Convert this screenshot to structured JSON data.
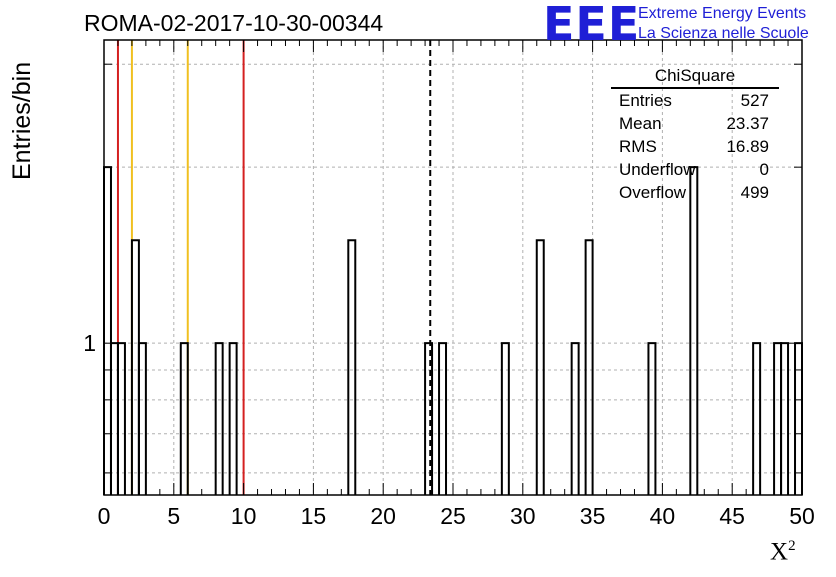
{
  "header": {
    "run_title": "ROMA-02-2017-10-30-00344"
  },
  "logo": {
    "mark": "EEE",
    "line1": "Extreme Energy Events",
    "line2": "La Scienza nelle Scuole"
  },
  "stats_box": {
    "title": "ChiSquare",
    "rows": [
      {
        "name": "Entries",
        "value": "527"
      },
      {
        "name": "Mean",
        "value": "23.37"
      },
      {
        "name": "RMS",
        "value": "16.89"
      },
      {
        "name": "Underflow",
        "value": "0"
      },
      {
        "name": "Overflow",
        "value": "499"
      }
    ]
  },
  "colors": {
    "histogram": "#000000",
    "red_lines": "#d42020",
    "yellow_lines": "#f0c020",
    "mean_line": "#000000",
    "grid": "#b0b0b0",
    "logo": "#1f1fd6"
  },
  "chart_data": {
    "type": "histogram",
    "title": "ROMA-02-2017-10-30-00344",
    "xlabel": "X",
    "xlabel_superscript": "2",
    "ylabel": "Entries/bin",
    "x_range": [
      0,
      50
    ],
    "x_ticks": [
      0,
      5,
      10,
      15,
      20,
      25,
      30,
      35,
      40,
      45,
      50
    ],
    "y_scale": "log",
    "y_range": [
      0.55,
      3.3
    ],
    "y_tick_labels": [
      {
        "value": 1,
        "label": "1"
      }
    ],
    "grid": true,
    "bin_width": 0.5,
    "bins": [
      {
        "x": 0.0,
        "count": 2
      },
      {
        "x": 0.5,
        "count": 1
      },
      {
        "x": 1.0,
        "count": 1
      },
      {
        "x": 2.0,
        "count": 1.5
      },
      {
        "x": 2.5,
        "count": 1
      },
      {
        "x": 5.5,
        "count": 1
      },
      {
        "x": 8.0,
        "count": 1
      },
      {
        "x": 9.0,
        "count": 1
      },
      {
        "x": 17.5,
        "count": 1.5
      },
      {
        "x": 23.0,
        "count": 1
      },
      {
        "x": 24.0,
        "count": 1
      },
      {
        "x": 28.5,
        "count": 1
      },
      {
        "x": 31.0,
        "count": 1.5
      },
      {
        "x": 33.5,
        "count": 1
      },
      {
        "x": 34.5,
        "count": 1.5
      },
      {
        "x": 39.0,
        "count": 1
      },
      {
        "x": 42.0,
        "count": 2
      },
      {
        "x": 46.5,
        "count": 1
      },
      {
        "x": 48.0,
        "count": 1
      },
      {
        "x": 48.5,
        "count": 1
      },
      {
        "x": 49.5,
        "count": 1
      }
    ],
    "reference_lines": [
      {
        "x": 1.0,
        "color": "red"
      },
      {
        "x": 10.0,
        "color": "red"
      },
      {
        "x": 2.0,
        "color": "yellow"
      },
      {
        "x": 6.0,
        "color": "yellow"
      }
    ],
    "mean_line": {
      "x": 23.37,
      "style": "dashed"
    },
    "legend_position": "top-right"
  }
}
